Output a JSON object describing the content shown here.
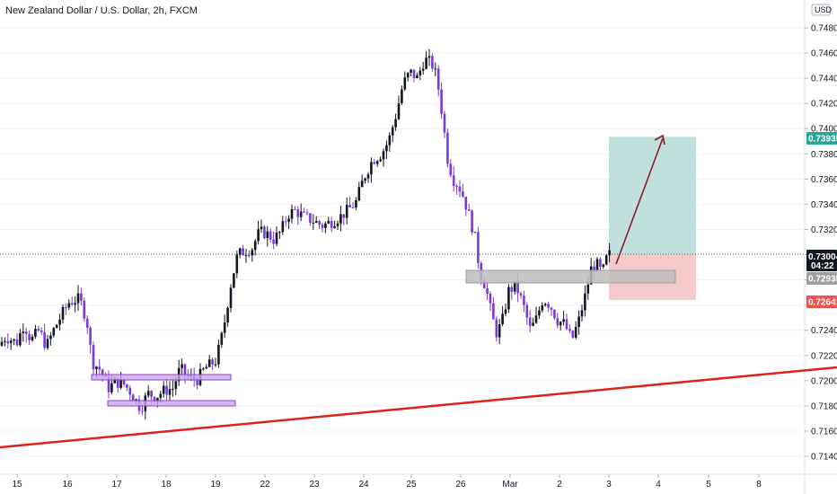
{
  "header": {
    "title": "New Zealand Dollar / U.S. Dollar, 2h, FXCM"
  },
  "axis": {
    "currency": "USD"
  },
  "colors": {
    "up": "#131722",
    "down": "#7b3ad8",
    "trendline": "#e0201b",
    "zone": "#bdbdbd",
    "box": "#c9a6e8",
    "target": "#bfe0dc",
    "stop": "#f6c9cb",
    "arrow": "#8b1a2b",
    "tag_target": "#26a69a",
    "tag_stop": "#ef5350",
    "tag_current": "#131722",
    "tag_entry": "#9e9e9e"
  },
  "chart_data": {
    "type": "candlestick",
    "title": "New Zealand Dollar / U.S. Dollar, 2h, FXCM",
    "ylim": [
      0.713,
      0.75
    ],
    "y_ticks": [
      "0.74800",
      "0.74600",
      "0.74400",
      "0.74200",
      "0.74000",
      "0.73800",
      "0.73600",
      "0.73400",
      "0.73200",
      "0.73000",
      "0.72800",
      "0.72600",
      "0.72400",
      "0.72200",
      "0.72000",
      "0.71800",
      "0.71600",
      "0.71400"
    ],
    "x_ticks": [
      "15",
      "16",
      "17",
      "18",
      "19",
      "22",
      "23",
      "24",
      "25",
      "26",
      "Mar",
      "2",
      "3",
      "4",
      "5",
      "8"
    ],
    "price_tags": {
      "target": "0.73935",
      "current": "0.73004",
      "countdown": "04:22",
      "entry": "0.72935",
      "stop": "0.72641"
    },
    "trendline": {
      "from": [
        0,
        0.7151
      ],
      "to": [
        1,
        0.7213
      ]
    },
    "support_zone": {
      "low": 0.7289,
      "high": 0.7298
    },
    "long_position": {
      "entry": 0.72935,
      "target": 0.73935,
      "stop": 0.72641
    },
    "candles": []
  }
}
